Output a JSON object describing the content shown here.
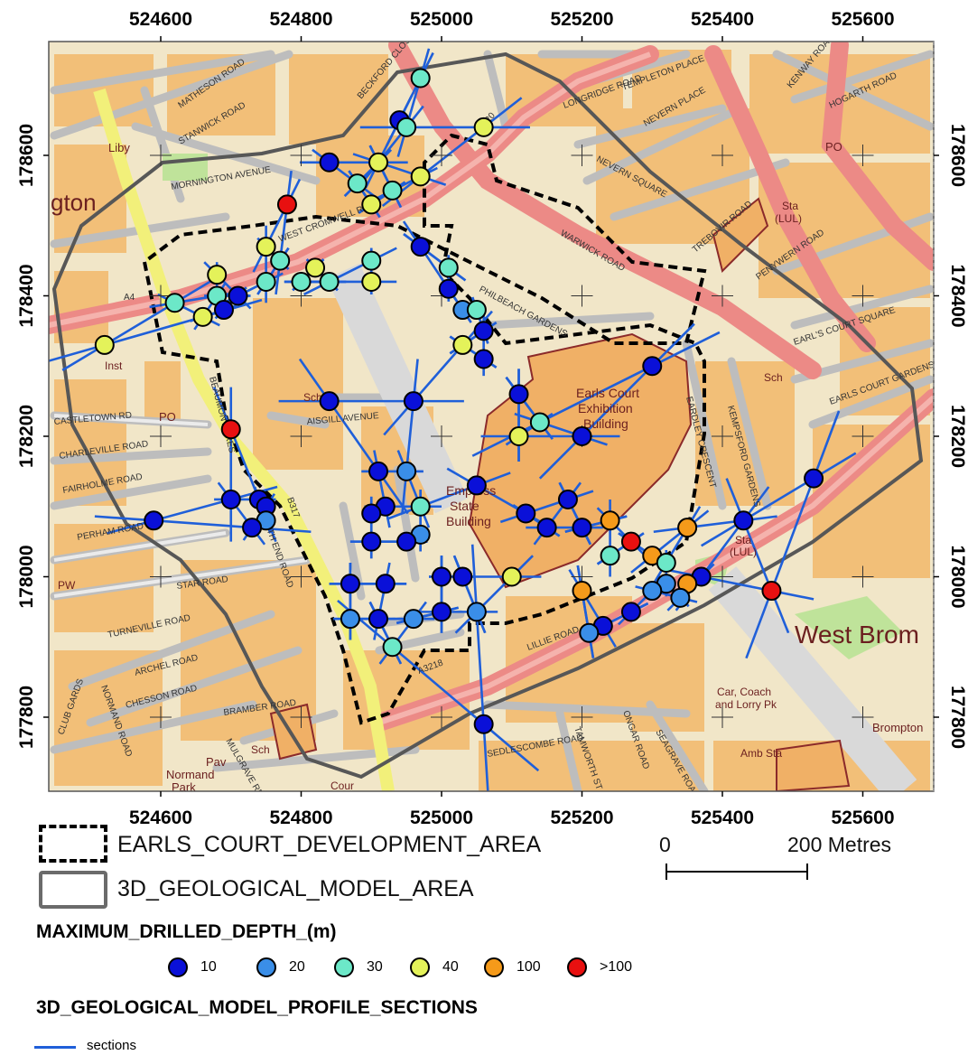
{
  "map": {
    "x_ticks": [
      "524600",
      "524800",
      "525000",
      "525200",
      "525400",
      "525600"
    ],
    "y_ticks": [
      "178600",
      "178400",
      "178200",
      "178000",
      "177800"
    ],
    "place_labels": {
      "ashton": "gton",
      "west_brompton": "West Brom",
      "brompton": "Brompton",
      "empress": [
        "Empress",
        "State",
        "Building"
      ],
      "earls_court": [
        "Earls Court",
        "Exhibition",
        "Building"
      ],
      "car_park": [
        "Car, Coach",
        "and Lorry Pk"
      ],
      "normand": [
        "Pav",
        "Normand",
        "Park"
      ],
      "liby": "Liby",
      "inst": "Inst",
      "po_a": "PO",
      "po_b": "PO",
      "sch_a": "Sch",
      "sch_b": "Sch",
      "sch_c": "Sch",
      "sta_a": [
        "Sta",
        "(LUL)"
      ],
      "sta_b": [
        "Sta",
        "(LUL)"
      ],
      "amb_sta": "Amb Sta",
      "pw": "PW",
      "cour": "Cour"
    },
    "road_labels": {
      "cromwell": "WEST CROMWELL ROAD",
      "warwick": "WARWICK ROAD",
      "lillie": "LILLIE ROAD",
      "north_end": "NORTH END ROAD",
      "philbeach": "PHILBEACH GARDENS",
      "earls_court_sq": "EARL'S COURT SQUARE",
      "earls_court_gdns": "EARLS COURT GARDENS",
      "fairholme": "FAIRHOLME ROAD",
      "perham": "PERHAM ROAD",
      "star": "STAR ROAD",
      "turneville": "TURNEVILLE ROAD",
      "archel": "ARCHEL ROAD",
      "chesson": "CHESSON ROAD",
      "bramber": "BRAMBER ROAD",
      "mulgrave": "MULGRAVE RD",
      "sedlescombe": "SEDLESCOMBE ROAD",
      "tamworth": "TAMWORTH ST",
      "seagrave": "SEAGRAVE ROAD",
      "eardley": "EARDLEY CRESCENT",
      "kempsford": "KEMPSFORD GARDENS",
      "templeton": "TEMPLETON PLACE",
      "longridge": "LONGRIDGE ROAD",
      "nevern_sq": "NEVERN SQUARE",
      "nevern_pl": "NEVERN PLACE",
      "trebovir": "TREBOVIR ROAD",
      "penywern": "PENYWERN ROAD",
      "hogarth": "HOGARTH ROAD",
      "kenway": "KENWAY ROAD",
      "matheson": "MATHESON ROAD",
      "stanwick": "STANWICK ROAD",
      "mornington": "MORNINGTON AVENUE",
      "beckford": "BECKFORD CLOSE",
      "beaumont": "BEAUMONT CRES",
      "aisgill": "AISGILL AVENUE",
      "charleville": "CHARLEVILLE ROAD",
      "castletown": "CASTLETOWN RD",
      "a4": "A4",
      "a3220": "A3220",
      "a3218": "A3218",
      "b317": "B317",
      "club": "CLUB GARDS",
      "normand": "NORMAND ROAD",
      "oxford": "ONGAR ROAD"
    }
  },
  "legend": {
    "development_area": "EARLS_COURT_DEVELOPMENT_AREA",
    "model_area": "3D_GEOLOGICAL_MODEL_AREA",
    "scale_start": "0",
    "scale_end": "200 Metres",
    "depth_title": "MAXIMUM_DRILLED_DEPTH_(m)",
    "depth_classes": [
      {
        "label": "10",
        "color": "#0a10d8"
      },
      {
        "label": "20",
        "color": "#3a8ee8"
      },
      {
        "label": "30",
        "color": "#6ce8c8"
      },
      {
        "label": "40",
        "color": "#e4f25a"
      },
      {
        "label": "100",
        "color": "#f59a1a"
      },
      {
        "label": ">100",
        "color": "#e81010"
      }
    ],
    "sections_title": "3D_GEOLOGICAL_MODEL_PROFILE_SECTIONS",
    "sections_label": "sections",
    "sections_color": "#1f5fd9"
  },
  "boreholes": [
    {
      "x": 524970,
      "y": 178710,
      "class": "30"
    },
    {
      "x": 524940,
      "y": 178650,
      "class": "10"
    },
    {
      "x": 524950,
      "y": 178640,
      "class": "30"
    },
    {
      "x": 525060,
      "y": 178640,
      "class": "40"
    },
    {
      "x": 524840,
      "y": 178590,
      "class": "10"
    },
    {
      "x": 524910,
      "y": 178590,
      "class": "40"
    },
    {
      "x": 524970,
      "y": 178570,
      "class": "40"
    },
    {
      "x": 524880,
      "y": 178560,
      "class": "30"
    },
    {
      "x": 524930,
      "y": 178550,
      "class": "30"
    },
    {
      "x": 524780,
      "y": 178530,
      "class": ">100"
    },
    {
      "x": 524900,
      "y": 178530,
      "class": "40"
    },
    {
      "x": 524750,
      "y": 178470,
      "class": "40"
    },
    {
      "x": 524970,
      "y": 178470,
      "class": "10"
    },
    {
      "x": 524770,
      "y": 178450,
      "class": "30"
    },
    {
      "x": 524820,
      "y": 178440,
      "class": "40"
    },
    {
      "x": 524900,
      "y": 178450,
      "class": "30"
    },
    {
      "x": 525010,
      "y": 178440,
      "class": "30"
    },
    {
      "x": 524680,
      "y": 178430,
      "class": "40"
    },
    {
      "x": 524750,
      "y": 178420,
      "class": "30"
    },
    {
      "x": 524800,
      "y": 178420,
      "class": "30"
    },
    {
      "x": 524840,
      "y": 178420,
      "class": "30"
    },
    {
      "x": 524900,
      "y": 178420,
      "class": "40"
    },
    {
      "x": 525010,
      "y": 178410,
      "class": "10"
    },
    {
      "x": 524620,
      "y": 178390,
      "class": "30"
    },
    {
      "x": 524680,
      "y": 178400,
      "class": "30"
    },
    {
      "x": 524710,
      "y": 178400,
      "class": "10"
    },
    {
      "x": 525030,
      "y": 178380,
      "class": "20"
    },
    {
      "x": 525050,
      "y": 178380,
      "class": "30"
    },
    {
      "x": 524690,
      "y": 178380,
      "class": "10"
    },
    {
      "x": 524660,
      "y": 178370,
      "class": "40"
    },
    {
      "x": 525060,
      "y": 178350,
      "class": "10"
    },
    {
      "x": 524520,
      "y": 178330,
      "class": "40"
    },
    {
      "x": 525030,
      "y": 178330,
      "class": "40"
    },
    {
      "x": 525060,
      "y": 178310,
      "class": "10"
    },
    {
      "x": 525300,
      "y": 178300,
      "class": "10"
    },
    {
      "x": 525110,
      "y": 178260,
      "class": "10"
    },
    {
      "x": 524840,
      "y": 178250,
      "class": "10"
    },
    {
      "x": 524960,
      "y": 178250,
      "class": "10"
    },
    {
      "x": 525140,
      "y": 178220,
      "class": "30"
    },
    {
      "x": 524700,
      "y": 178210,
      "class": ">100"
    },
    {
      "x": 525110,
      "y": 178200,
      "class": "40"
    },
    {
      "x": 525200,
      "y": 178200,
      "class": "10"
    },
    {
      "x": 524910,
      "y": 178150,
      "class": "10"
    },
    {
      "x": 524950,
      "y": 178150,
      "class": "20"
    },
    {
      "x": 525530,
      "y": 178140,
      "class": "10"
    },
    {
      "x": 525050,
      "y": 178130,
      "class": "10"
    },
    {
      "x": 524700,
      "y": 178110,
      "class": "10"
    },
    {
      "x": 524740,
      "y": 178110,
      "class": "10"
    },
    {
      "x": 524750,
      "y": 178100,
      "class": "10"
    },
    {
      "x": 524920,
      "y": 178100,
      "class": "10"
    },
    {
      "x": 524970,
      "y": 178100,
      "class": "30"
    },
    {
      "x": 525180,
      "y": 178110,
      "class": "10"
    },
    {
      "x": 524900,
      "y": 178090,
      "class": "10"
    },
    {
      "x": 525120,
      "y": 178090,
      "class": "10"
    },
    {
      "x": 524590,
      "y": 178080,
      "class": "10"
    },
    {
      "x": 524750,
      "y": 178080,
      "class": "20"
    },
    {
      "x": 524730,
      "y": 178070,
      "class": "10"
    },
    {
      "x": 525240,
      "y": 178080,
      "class": "100"
    },
    {
      "x": 525350,
      "y": 178070,
      "class": "100"
    },
    {
      "x": 525430,
      "y": 178080,
      "class": "10"
    },
    {
      "x": 525150,
      "y": 178070,
      "class": "10"
    },
    {
      "x": 525200,
      "y": 178070,
      "class": "10"
    },
    {
      "x": 524970,
      "y": 178060,
      "class": "20"
    },
    {
      "x": 524900,
      "y": 178050,
      "class": "10"
    },
    {
      "x": 524950,
      "y": 178050,
      "class": "10"
    },
    {
      "x": 525270,
      "y": 178050,
      "class": ">100"
    },
    {
      "x": 525240,
      "y": 178030,
      "class": "30"
    },
    {
      "x": 525300,
      "y": 178030,
      "class": "100"
    },
    {
      "x": 525320,
      "y": 178020,
      "class": "30"
    },
    {
      "x": 525000,
      "y": 178000,
      "class": "10"
    },
    {
      "x": 525030,
      "y": 178000,
      "class": "10"
    },
    {
      "x": 525100,
      "y": 178000,
      "class": "40"
    },
    {
      "x": 525370,
      "y": 178000,
      "class": "10"
    },
    {
      "x": 524870,
      "y": 177990,
      "class": "10"
    },
    {
      "x": 524920,
      "y": 177990,
      "class": "10"
    },
    {
      "x": 525320,
      "y": 177990,
      "class": "20"
    },
    {
      "x": 525350,
      "y": 177990,
      "class": "100"
    },
    {
      "x": 525200,
      "y": 177980,
      "class": "100"
    },
    {
      "x": 525300,
      "y": 177980,
      "class": "20"
    },
    {
      "x": 525470,
      "y": 177980,
      "class": ">100"
    },
    {
      "x": 525340,
      "y": 177970,
      "class": "20"
    },
    {
      "x": 525270,
      "y": 177950,
      "class": "10"
    },
    {
      "x": 524960,
      "y": 177940,
      "class": "20"
    },
    {
      "x": 525000,
      "y": 177950,
      "class": "10"
    },
    {
      "x": 525050,
      "y": 177950,
      "class": "20"
    },
    {
      "x": 524870,
      "y": 177940,
      "class": "20"
    },
    {
      "x": 524910,
      "y": 177940,
      "class": "10"
    },
    {
      "x": 525230,
      "y": 177930,
      "class": "10"
    },
    {
      "x": 525210,
      "y": 177920,
      "class": "20"
    },
    {
      "x": 524930,
      "y": 177900,
      "class": "30"
    },
    {
      "x": 525060,
      "y": 177790,
      "class": "10"
    }
  ]
}
